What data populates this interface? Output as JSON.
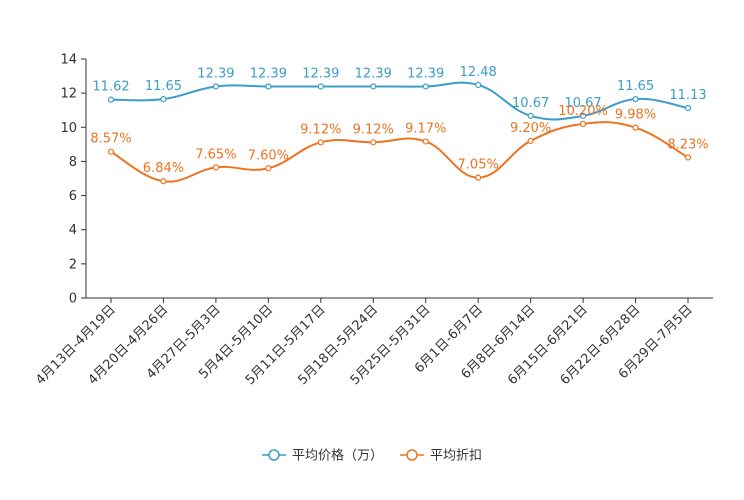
{
  "chart_data": {
    "type": "line",
    "title": "",
    "xlabel": "",
    "ylabel": "",
    "ylim": [
      0,
      14
    ],
    "yticks": [
      0,
      2,
      4,
      6,
      8,
      10,
      12,
      14
    ],
    "grid": false,
    "legend_position": "bottom-center",
    "categories": [
      "4月13日-4月19日",
      "4月20日-4月26日",
      "4月27日-5月3日",
      "5月4日-5月10日",
      "5月11日-5月17日",
      "5月18日-5月24日",
      "5月25日-5月31日",
      "6月1日-6月7日",
      "6月8日-6月14日",
      "6月15日-6月21日",
      "6月22日-6月28日",
      "6月29日-7月5日"
    ],
    "series": [
      {
        "name": "平均价格（万）",
        "color": "#3c9ccb",
        "values": [
          11.62,
          11.65,
          12.39,
          12.39,
          12.39,
          12.39,
          12.39,
          12.48,
          10.67,
          10.67,
          11.65,
          11.13
        ],
        "labels": [
          "11.62",
          "11.65",
          "12.39",
          "12.39",
          "12.39",
          "12.39",
          "12.39",
          "12.48",
          "10.67",
          "10.67",
          "11.65",
          "11.13"
        ]
      },
      {
        "name": "平均折扣",
        "color": "#ee7320",
        "values": [
          8.57,
          6.84,
          7.65,
          7.6,
          9.12,
          9.12,
          9.17,
          7.05,
          9.2,
          10.2,
          9.98,
          8.23
        ],
        "labels": [
          "8.57%",
          "6.84%",
          "7.65%",
          "7.60%",
          "9.12%",
          "9.12%",
          "9.17%",
          "7.05%",
          "9.20%",
          "10.20%",
          "9.98%",
          "8.23%"
        ]
      }
    ]
  }
}
